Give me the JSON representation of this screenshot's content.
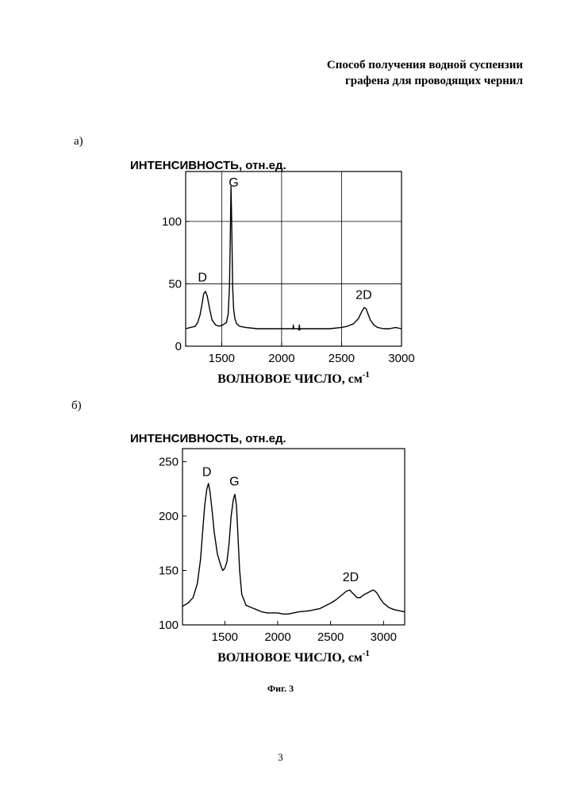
{
  "document": {
    "title_line1": "Способ получения водной суспензии",
    "title_line2": "графена для проводящих чернил",
    "figure_caption": "Фиг. 3",
    "page_number": "3"
  },
  "chart_data": [
    {
      "panel_label": "а)",
      "type": "line",
      "ylabel": "ИНТЕНСИВНОСТЬ, отн.ед.",
      "xlabel_main": "ВОЛНОВОЕ ЧИСЛО, см",
      "xlabel_sup": "-1",
      "xlim": [
        1200,
        3000
      ],
      "ylim": [
        0,
        140
      ],
      "xticks": [
        1500,
        2000,
        2500,
        3000
      ],
      "yticks": [
        0,
        50,
        100
      ],
      "grid": true,
      "annotations": [
        {
          "text": "D",
          "x": 1340,
          "y": 52
        },
        {
          "text": "G",
          "x": 1600,
          "y": 128
        },
        {
          "text": "2D",
          "x": 2685,
          "y": 38
        }
      ],
      "series": [
        {
          "x": [
            1200,
            1240,
            1280,
            1300,
            1320,
            1335,
            1350,
            1365,
            1380,
            1400,
            1420,
            1450,
            1480,
            1510,
            1540,
            1555,
            1565,
            1572,
            1578,
            1582,
            1587,
            1592,
            1600,
            1610,
            1625,
            1650,
            1700,
            1800,
            1900,
            2000,
            2095,
            2098,
            2102,
            2105,
            2140,
            2145,
            2148,
            2151,
            2155,
            2200,
            2300,
            2400,
            2500,
            2550,
            2600,
            2640,
            2670,
            2690,
            2705,
            2720,
            2740,
            2770,
            2800,
            2850,
            2900,
            2950,
            3000
          ],
          "y": [
            14,
            15,
            16,
            19,
            25,
            33,
            42,
            44,
            40,
            30,
            21,
            17,
            16,
            17,
            19,
            26,
            48,
            86,
            128,
            110,
            78,
            48,
            30,
            22,
            18,
            16,
            15,
            14,
            14,
            14,
            14,
            17,
            14,
            14,
            14,
            13,
            17,
            13,
            14,
            14,
            14,
            14,
            15,
            16,
            18,
            22,
            28,
            31,
            30,
            26,
            21,
            17,
            15,
            14,
            14,
            15,
            14
          ]
        }
      ]
    },
    {
      "panel_label": "б)",
      "type": "line",
      "ylabel": "ИНТЕНСИВНОСТЬ, отн.ед.",
      "xlabel_main": "ВОЛНОВОЕ ЧИСЛО, см",
      "xlabel_sup": "-1",
      "xlim": [
        1100,
        3200
      ],
      "ylim": [
        100,
        262
      ],
      "xticks": [
        1500,
        2000,
        2500,
        3000
      ],
      "yticks": [
        100,
        150,
        200,
        250
      ],
      "grid": false,
      "annotations": [
        {
          "text": "D",
          "x": 1330,
          "y": 237
        },
        {
          "text": "G",
          "x": 1590,
          "y": 228
        },
        {
          "text": "2D",
          "x": 2690,
          "y": 140
        }
      ],
      "series": [
        {
          "x": [
            1100,
            1150,
            1200,
            1240,
            1270,
            1290,
            1310,
            1330,
            1345,
            1360,
            1380,
            1400,
            1430,
            1460,
            1480,
            1500,
            1520,
            1540,
            1560,
            1580,
            1595,
            1610,
            1625,
            1640,
            1660,
            1700,
            1750,
            1800,
            1850,
            1900,
            1950,
            2000,
            2050,
            2100,
            2150,
            2200,
            2300,
            2400,
            2500,
            2550,
            2600,
            2650,
            2680,
            2700,
            2720,
            2750,
            2780,
            2820,
            2860,
            2900,
            2920,
            2940,
            2970,
            3000,
            3050,
            3100,
            3150,
            3200
          ],
          "y": [
            117,
            120,
            125,
            138,
            160,
            185,
            210,
            225,
            230,
            222,
            205,
            185,
            165,
            155,
            150,
            152,
            158,
            175,
            200,
            215,
            220,
            210,
            180,
            150,
            128,
            118,
            116,
            114,
            112,
            111,
            111,
            111,
            110,
            110,
            111,
            112,
            113,
            115,
            120,
            123,
            127,
            131,
            132,
            130,
            128,
            125,
            125,
            128,
            130,
            132,
            131,
            129,
            124,
            120,
            116,
            114,
            113,
            112
          ]
        }
      ]
    }
  ]
}
